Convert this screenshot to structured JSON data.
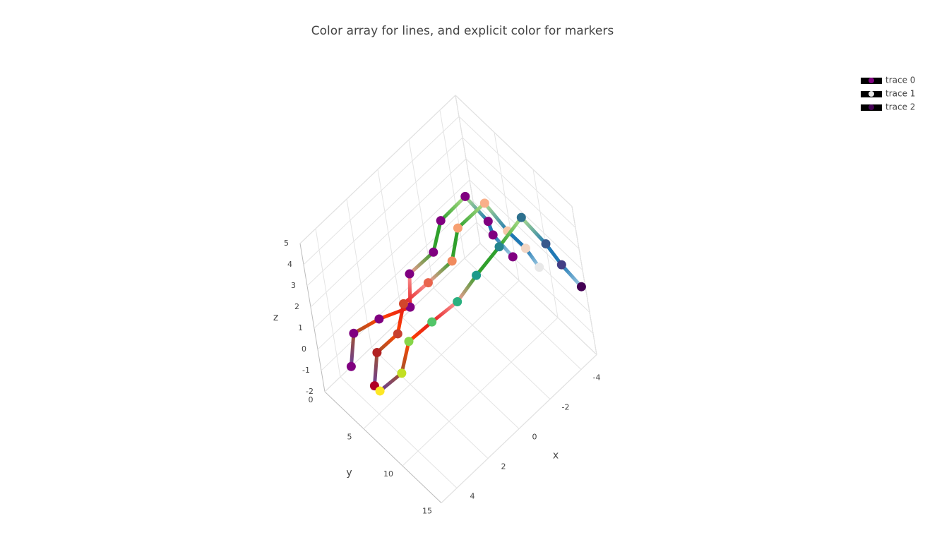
{
  "chart_data": {
    "type": "scatter3d",
    "title": "Color array for lines, and explicit color for markers",
    "xlabel": "x",
    "ylabel": "y",
    "zlabel": "z",
    "xlim": [
      -5,
      5
    ],
    "ylim": [
      0,
      15
    ],
    "zlim": [
      -2,
      5
    ],
    "xticks": [
      -4,
      -2,
      0,
      2,
      4
    ],
    "yticks": [
      0,
      5,
      10,
      15
    ],
    "zticks": [
      -2,
      -1,
      0,
      1,
      2,
      3,
      4,
      5
    ],
    "grid": true,
    "legend": "top-right",
    "series": [
      {
        "name": "trace 0",
        "x": [
          3.3,
          3.0,
          2.0,
          0.6,
          0.4,
          -0.8,
          -1.5,
          -2.5,
          -3.0,
          -3.0,
          -3.5
        ],
        "y": [
          0,
          0.4,
          1.9,
          3.1,
          3.3,
          4.2,
          4.2,
          5.8,
          7.3,
          7.7,
          8.8
        ],
        "z": [
          -2,
          -0.5,
          0,
          0,
          1.5,
          2,
          3,
          4,
          3,
          2.5,
          1.5
        ],
        "marker_color": "#800080",
        "line_colors": [
          "#6a3d9a",
          "#a0522d",
          "#ff4500",
          "#e31a1c",
          "#fb9a99",
          "#33a02c",
          "#2ca02c",
          "#b2df8a",
          "#1f78b4",
          "#1f78b4",
          "#a6cee3"
        ]
      },
      {
        "name": "trace 1",
        "x": [
          3.2,
          2.9,
          1.9,
          1.3,
          0.1,
          -1.1,
          -1.8,
          -2.9,
          -3.3,
          -3.6,
          -4.0
        ],
        "y": [
          2.8,
          3.2,
          4.1,
          4.1,
          5.1,
          6.0,
          5.8,
          7.5,
          9.2,
          10.7,
          11.2
        ],
        "z": [
          -2,
          -0.5,
          0,
          1,
          1.5,
          2,
          3,
          4,
          3,
          2.5,
          1.5
        ],
        "marker_color": [
          "#b10026",
          "#b22222",
          "#c8402f",
          "#d2452c",
          "#e9644d",
          "#f08a5d",
          "#f7a072",
          "#f9b08a",
          "#f6c7a8",
          "#f2d6c4",
          "#e8e8e8"
        ],
        "line_colors": [
          "#6a3d9a",
          "#a0522d",
          "#ff4500",
          "#e31a1c",
          "#fb9a99",
          "#33a02c",
          "#2ca02c",
          "#b2df8a",
          "#1f78b4",
          "#1f78b4",
          "#a6cee3"
        ]
      },
      {
        "name": "trace 2",
        "x": [
          3.2,
          1.9,
          1.5,
          0.4,
          -0.8,
          -1.7,
          -2.8,
          -3.9,
          -4.4,
          -4.5,
          -5.0
        ],
        "y": [
          3.5,
          3.7,
          4.5,
          5.5,
          6.6,
          7.7,
          8.9,
          10.0,
          11.7,
          13.3,
          14.4
        ],
        "z": [
          -2,
          -2,
          -0.5,
          0,
          0.5,
          1.5,
          2.5,
          3.5,
          2.5,
          2,
          1
        ],
        "marker_color": [
          "#fde725",
          "#c2df23",
          "#86d549",
          "#52c569",
          "#2ab07f",
          "#1e9b8a",
          "#25858e",
          "#2d708e",
          "#38588c",
          "#433e85",
          "#440154"
        ],
        "line_colors": [
          "#6a3d9a",
          "#a0522d",
          "#ff4500",
          "#e31a1c",
          "#fb9a99",
          "#33a02c",
          "#2ca02c",
          "#b2df8a",
          "#1f78b4",
          "#1f78b4",
          "#a6cee3"
        ]
      }
    ]
  }
}
